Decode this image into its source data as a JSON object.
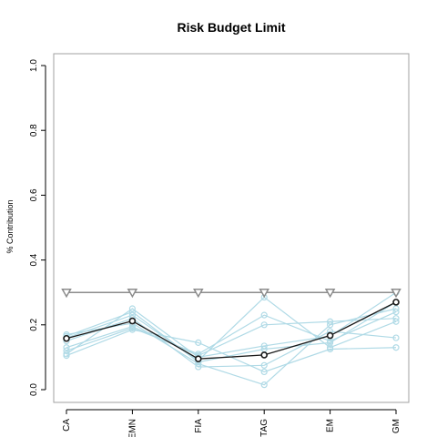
{
  "chart_data": {
    "type": "line",
    "title": "Risk Budget Limit",
    "xlabel": "",
    "ylabel": "% Contribution",
    "ylim": [
      0,
      1
    ],
    "yticks": [
      "0.0",
      "0.2",
      "0.4",
      "0.6",
      "0.8",
      "1.0"
    ],
    "categories": [
      "CA",
      "EMN",
      "FIA",
      "GTAG",
      "EM",
      "GM"
    ],
    "limit": {
      "values": [
        0.3,
        0.3,
        0.3,
        0.3,
        0.3,
        0.3
      ],
      "color": "#8c8c8c",
      "marker": "triangle-down"
    },
    "highlight": {
      "values": [
        0.158,
        0.212,
        0.095,
        0.107,
        0.167,
        0.27
      ],
      "color": "#1a1a1a",
      "marker": "circle"
    },
    "series_color": "#b0dae6",
    "series": [
      {
        "values": [
          0.16,
          0.23,
          0.09,
          0.285,
          0.13,
          0.21
        ]
      },
      {
        "values": [
          0.12,
          0.19,
          0.11,
          0.23,
          0.15,
          0.24
        ]
      },
      {
        "values": [
          0.11,
          0.25,
          0.1,
          0.135,
          0.165,
          0.3
        ]
      },
      {
        "values": [
          0.17,
          0.205,
          0.08,
          0.015,
          0.2,
          0.25
        ]
      },
      {
        "values": [
          0.105,
          0.185,
          0.145,
          0.055,
          0.125,
          0.13
        ]
      },
      {
        "values": [
          0.15,
          0.22,
          0.07,
          0.075,
          0.18,
          0.16
        ]
      },
      {
        "values": [
          0.13,
          0.195,
          0.105,
          0.2,
          0.21,
          0.22
        ]
      },
      {
        "values": [
          0.165,
          0.24,
          0.085,
          0.125,
          0.145,
          0.27
        ]
      }
    ],
    "grid": false,
    "legend": "none"
  }
}
